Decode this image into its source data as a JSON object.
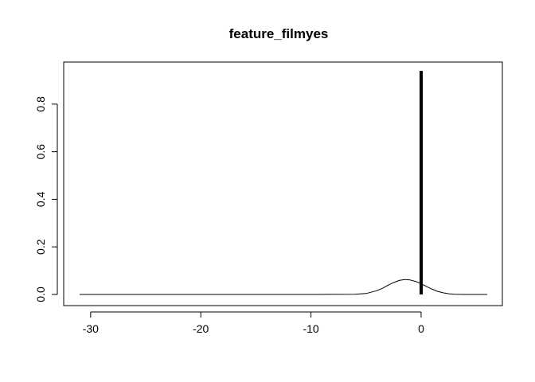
{
  "chart_data": {
    "type": "line",
    "title": "feature_filmyes",
    "xlabel": "",
    "ylabel": "",
    "xlim": [
      -31,
      6
    ],
    "ylim": [
      0,
      0.94
    ],
    "xticks": [
      -30,
      -20,
      -10,
      0
    ],
    "yticks": [
      0.0,
      0.2,
      0.4,
      0.6,
      0.8
    ],
    "xtick_labels": [
      "-30",
      "-20",
      "-10",
      "0"
    ],
    "ytick_labels": [
      "0.0",
      "0.2",
      "0.4",
      "0.6",
      "0.8"
    ],
    "grid": false,
    "series": [
      {
        "style": "thin",
        "x": [
          -31,
          -25,
          -20,
          -15,
          -10,
          -6,
          -5,
          -4,
          -3.5,
          -3,
          -2.5,
          -2,
          -1.5,
          -1,
          -0.5,
          0,
          0.5,
          1,
          1.5,
          2,
          2.5,
          3,
          4,
          5,
          6
        ],
        "y": [
          0.0,
          0.0,
          0.0,
          0.0,
          0.0,
          0.001,
          0.004,
          0.016,
          0.026,
          0.039,
          0.05,
          0.059,
          0.063,
          0.061,
          0.055,
          0.045,
          0.033,
          0.022,
          0.013,
          0.007,
          0.003,
          0.001,
          0.0,
          0.0,
          0.0
        ]
      },
      {
        "style": "thick",
        "x": [
          0,
          0
        ],
        "y": [
          0,
          0.94
        ]
      }
    ]
  }
}
